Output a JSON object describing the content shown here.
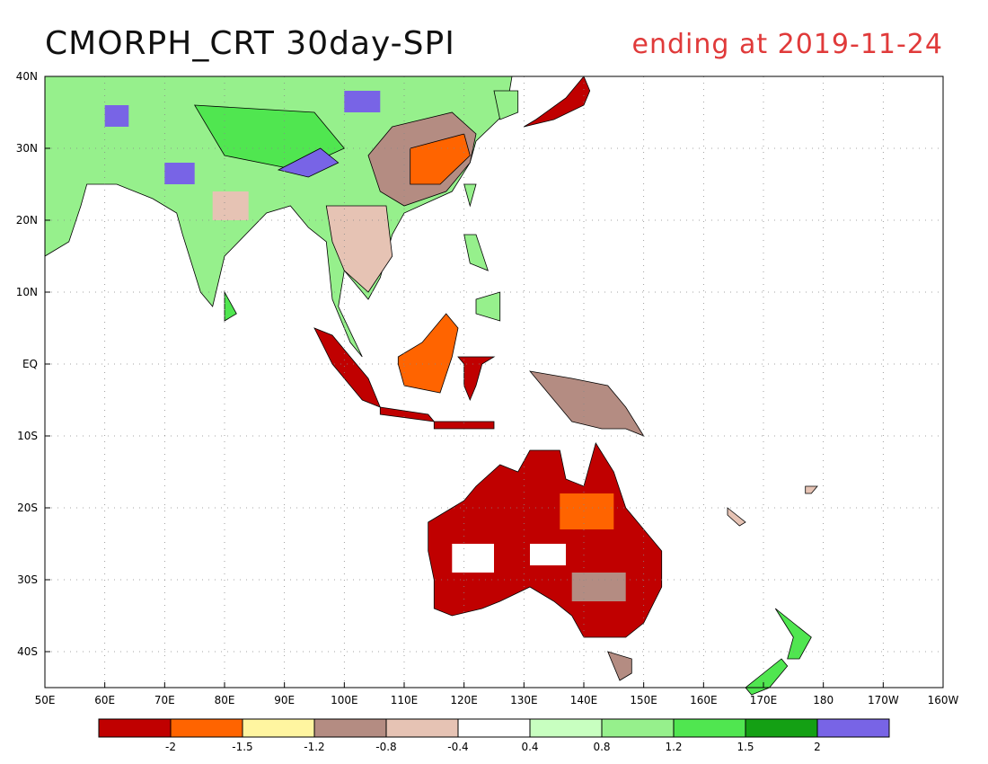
{
  "title": "CMORPH_CRT 30day-SPI",
  "subtitle": "ending at 2019-11-24",
  "map": {
    "lon_range": [
      50,
      200
    ],
    "lat_range": [
      -45,
      40
    ],
    "lat_ticks": [
      {
        "lat": 40,
        "label": "40N"
      },
      {
        "lat": 30,
        "label": "30N"
      },
      {
        "lat": 20,
        "label": "20N"
      },
      {
        "lat": 10,
        "label": "10N"
      },
      {
        "lat": 0,
        "label": "EQ"
      },
      {
        "lat": -10,
        "label": "10S"
      },
      {
        "lat": -20,
        "label": "20S"
      },
      {
        "lat": -30,
        "label": "30S"
      },
      {
        "lat": -40,
        "label": "40S"
      }
    ],
    "lon_ticks": [
      {
        "lon": 50,
        "label": "50E"
      },
      {
        "lon": 60,
        "label": "60E"
      },
      {
        "lon": 70,
        "label": "70E"
      },
      {
        "lon": 80,
        "label": "80E"
      },
      {
        "lon": 90,
        "label": "90E"
      },
      {
        "lon": 100,
        "label": "100E"
      },
      {
        "lon": 110,
        "label": "110E"
      },
      {
        "lon": 120,
        "label": "120E"
      },
      {
        "lon": 130,
        "label": "130E"
      },
      {
        "lon": 140,
        "label": "140E"
      },
      {
        "lon": 150,
        "label": "150E"
      },
      {
        "lon": 160,
        "label": "160E"
      },
      {
        "lon": 170,
        "label": "170E"
      },
      {
        "lon": 180,
        "label": "180"
      },
      {
        "lon": 190,
        "label": "170W"
      },
      {
        "lon": 200,
        "label": "160W"
      }
    ],
    "grid": true
  },
  "legend": {
    "colors": [
      "#c00000",
      "#ff6400",
      "#fff5a0",
      "#b48c82",
      "#e6c3b4",
      "#ffffff",
      "#c8ffc0",
      "#96f08c",
      "#50e650",
      "#14a014",
      "#7864e6"
    ],
    "labels": [
      "-2",
      "-1.5",
      "-1.2",
      "-0.8",
      "-0.4",
      "0.4",
      "0.8",
      "1.2",
      "1.5",
      "2"
    ]
  }
}
